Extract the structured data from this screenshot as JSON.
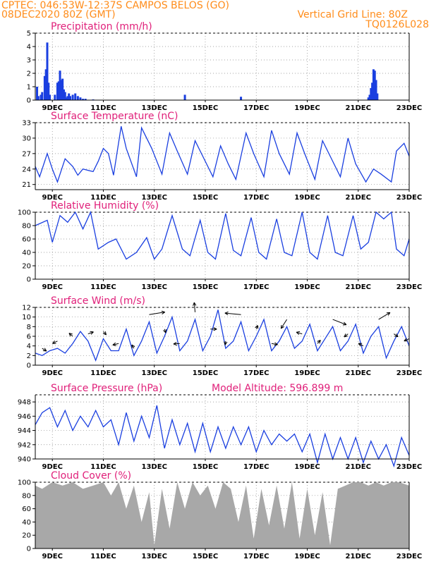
{
  "header": {
    "line1_left": "CPTEC:    046:53W-12:37S   CAMPOS BELOS (GO)",
    "line2_left": "08DEC2020 80Z (GMT)",
    "line1_right": "Vertical Grid Line: 80Z",
    "line2_right": "TQ0126L028"
  },
  "colors": {
    "series": "#1a3fe0",
    "cloud": "#a8a8a8",
    "header": "#ff8c1a",
    "title": "#e0207a",
    "wind_arrow": "#000000"
  },
  "x_ticks": [
    "9DEC",
    "11DEC",
    "13DEC",
    "15DEC",
    "17DEC",
    "19DEC",
    "21DEC",
    "23DEC"
  ],
  "chart_data": [
    {
      "type": "bar",
      "title": "Precipitation (mm/h)",
      "ylim": [
        0,
        5
      ],
      "yticks": [
        0,
        1,
        2,
        3,
        4,
        5
      ],
      "x_range_days": [
        8.33,
        23
      ],
      "x": [
        8.4,
        8.45,
        8.55,
        8.6,
        8.7,
        8.75,
        8.8,
        8.85,
        8.9,
        9.1,
        9.2,
        9.25,
        9.3,
        9.35,
        9.4,
        9.45,
        9.5,
        9.55,
        9.6,
        9.65,
        9.7,
        9.8,
        9.9,
        10.0,
        10.1,
        10.2,
        10.3,
        10.6,
        14.2,
        16.4,
        21.4,
        21.45,
        21.5,
        21.55,
        21.6,
        21.65,
        21.7,
        21.75
      ],
      "values": [
        1.0,
        0.3,
        0.4,
        0.6,
        1.8,
        2.3,
        4.3,
        1.3,
        0.4,
        0.4,
        1.3,
        1.4,
        2.2,
        1.5,
        1.6,
        0.8,
        0.6,
        0.2,
        0.3,
        0.5,
        0.3,
        0.4,
        0.5,
        0.3,
        0.2,
        0.1,
        0.1,
        0.05,
        0.4,
        0.25,
        0.2,
        0.4,
        0.9,
        1.3,
        2.3,
        2.2,
        1.5,
        0.5
      ],
      "grid": true
    },
    {
      "type": "line",
      "title": "Surface Temperature (nC)",
      "ylim": [
        20,
        33
      ],
      "yticks": [
        21,
        24,
        27,
        30,
        33
      ],
      "x": [
        8.33,
        8.5,
        8.8,
        9.0,
        9.2,
        9.5,
        9.8,
        10.0,
        10.2,
        10.6,
        10.8,
        11.0,
        11.2,
        11.4,
        11.7,
        11.9,
        12.3,
        12.5,
        12.9,
        13.3,
        13.6,
        13.9,
        14.3,
        14.6,
        14.9,
        15.3,
        15.6,
        15.9,
        16.2,
        16.6,
        16.9,
        17.3,
        17.6,
        17.9,
        18.3,
        18.6,
        18.9,
        19.3,
        19.6,
        19.9,
        20.3,
        20.6,
        20.9,
        21.3,
        21.6,
        21.9,
        22.3,
        22.5,
        22.8,
        23.0
      ],
      "values": [
        24.5,
        22.5,
        27.0,
        24.0,
        21.5,
        26.0,
        24.5,
        22.8,
        24.0,
        23.5,
        25.5,
        28.0,
        27.0,
        22.8,
        32.3,
        28.0,
        22.5,
        32.0,
        28.0,
        23.0,
        31.0,
        27.5,
        23.0,
        29.5,
        26.5,
        22.5,
        28.5,
        25.0,
        22.0,
        31.0,
        27.0,
        22.5,
        31.5,
        27.0,
        23.0,
        31.0,
        27.0,
        22.0,
        29.5,
        26.5,
        22.5,
        30.0,
        25.0,
        21.5,
        24.0,
        23.0,
        21.5,
        27.5,
        29.0,
        26.5
      ],
      "grid": true
    },
    {
      "type": "line",
      "title": "Relative Humidity (%)",
      "ylim": [
        0,
        100
      ],
      "yticks": [
        0,
        20,
        40,
        60,
        80,
        100
      ],
      "x": [
        8.33,
        8.8,
        9.0,
        9.3,
        9.6,
        9.9,
        10.2,
        10.5,
        10.8,
        11.2,
        11.5,
        11.9,
        12.3,
        12.7,
        13.0,
        13.3,
        13.7,
        14.1,
        14.4,
        14.8,
        15.1,
        15.4,
        15.8,
        16.1,
        16.4,
        16.8,
        17.1,
        17.4,
        17.8,
        18.1,
        18.4,
        18.8,
        19.1,
        19.4,
        19.8,
        20.1,
        20.4,
        20.8,
        21.1,
        21.4,
        21.7,
        22.0,
        22.3,
        22.5,
        22.8,
        23.0
      ],
      "values": [
        80,
        88,
        55,
        95,
        85,
        100,
        75,
        100,
        45,
        55,
        60,
        30,
        40,
        62,
        30,
        45,
        95,
        45,
        35,
        88,
        40,
        30,
        98,
        43,
        35,
        92,
        40,
        30,
        90,
        40,
        35,
        100,
        40,
        30,
        95,
        40,
        35,
        95,
        45,
        55,
        100,
        90,
        100,
        45,
        35,
        60
      ],
      "grid": true
    },
    {
      "type": "line",
      "title": "Surface Wind (m/s)",
      "ylim": [
        0,
        12
      ],
      "yticks": [
        0,
        2,
        4,
        6,
        8,
        10,
        12
      ],
      "x": [
        8.33,
        8.6,
        8.9,
        9.2,
        9.5,
        9.8,
        10.1,
        10.4,
        10.7,
        11.0,
        11.3,
        11.6,
        11.9,
        12.2,
        12.5,
        12.8,
        13.1,
        13.4,
        13.7,
        14.0,
        14.3,
        14.6,
        14.9,
        15.2,
        15.5,
        15.8,
        16.1,
        16.4,
        16.7,
        17.0,
        17.3,
        17.6,
        17.9,
        18.2,
        18.5,
        18.8,
        19.1,
        19.4,
        19.7,
        20.0,
        20.3,
        20.6,
        20.9,
        21.2,
        21.5,
        21.8,
        22.1,
        22.4,
        22.7,
        23.0
      ],
      "values": [
        2.5,
        2.0,
        3.0,
        3.5,
        2.5,
        4.5,
        7.0,
        5.0,
        1.0,
        5.5,
        3.0,
        3.0,
        7.5,
        2.0,
        5.0,
        9.0,
        2.5,
        6.0,
        10.0,
        3.0,
        5.0,
        9.5,
        3.0,
        6.0,
        11.5,
        3.5,
        5.0,
        9.0,
        3.0,
        6.0,
        9.5,
        3.0,
        5.0,
        8.0,
        3.5,
        5.0,
        8.5,
        3.0,
        5.5,
        8.0,
        3.0,
        5.0,
        8.5,
        2.5,
        6.0,
        8.0,
        1.5,
        5.0,
        8.0,
        4.0
      ],
      "wind_arrows_note": "direction arrows drawn along the curve",
      "grid": true
    },
    {
      "type": "line",
      "title": "Surface Pressure (hPa)",
      "annotation": "Model Altitude: 596.899  m",
      "ylim": [
        940,
        949
      ],
      "yticks": [
        940,
        942,
        944,
        946,
        948
      ],
      "x": [
        8.33,
        8.6,
        8.9,
        9.2,
        9.5,
        9.8,
        10.1,
        10.4,
        10.7,
        11.0,
        11.3,
        11.6,
        11.9,
        12.2,
        12.5,
        12.8,
        13.1,
        13.4,
        13.7,
        14.0,
        14.3,
        14.6,
        14.9,
        15.2,
        15.5,
        15.8,
        16.1,
        16.4,
        16.7,
        17.0,
        17.3,
        17.6,
        17.9,
        18.2,
        18.5,
        18.8,
        19.1,
        19.4,
        19.7,
        20.0,
        20.3,
        20.6,
        20.9,
        21.2,
        21.5,
        21.8,
        22.1,
        22.4,
        22.7,
        23.0
      ],
      "values": [
        944.8,
        946.5,
        947.2,
        944.5,
        946.8,
        944.0,
        946.0,
        944.5,
        946.8,
        944.5,
        945.5,
        942.0,
        946.5,
        942.5,
        946.0,
        943.0,
        947.5,
        941.5,
        945.5,
        942.0,
        945.0,
        941.0,
        945.0,
        941.0,
        944.5,
        941.5,
        944.5,
        942.0,
        944.5,
        941.0,
        944.0,
        942.0,
        943.5,
        942.5,
        943.5,
        941.0,
        943.5,
        939.5,
        943.5,
        940.0,
        943.0,
        940.0,
        943.0,
        939.5,
        942.5,
        940.0,
        942.0,
        939.0,
        943.0,
        940.5
      ],
      "grid": true
    },
    {
      "type": "area",
      "title": "Cloud Cover (%)",
      "ylim": [
        0,
        100
      ],
      "yticks": [
        0,
        20,
        40,
        60,
        80,
        100
      ],
      "x": [
        8.33,
        8.6,
        9.0,
        9.4,
        9.8,
        10.2,
        10.6,
        11.0,
        11.3,
        11.6,
        11.9,
        12.2,
        12.5,
        12.8,
        13.0,
        13.3,
        13.6,
        13.9,
        14.2,
        14.5,
        14.8,
        15.1,
        15.4,
        15.7,
        16.0,
        16.3,
        16.6,
        16.9,
        17.2,
        17.5,
        17.8,
        18.1,
        18.4,
        18.7,
        19.0,
        19.3,
        19.6,
        19.9,
        20.2,
        20.5,
        20.8,
        21.1,
        21.4,
        21.7,
        22.0,
        22.3,
        22.6,
        23.0
      ],
      "values": [
        95,
        90,
        100,
        95,
        100,
        90,
        95,
        100,
        80,
        100,
        60,
        95,
        40,
        85,
        5,
        90,
        30,
        100,
        60,
        100,
        80,
        95,
        60,
        100,
        90,
        40,
        95,
        15,
        90,
        35,
        95,
        30,
        100,
        15,
        90,
        20,
        85,
        5,
        90,
        95,
        100,
        100,
        95,
        100,
        95,
        100,
        100,
        95
      ],
      "grid": true
    }
  ]
}
